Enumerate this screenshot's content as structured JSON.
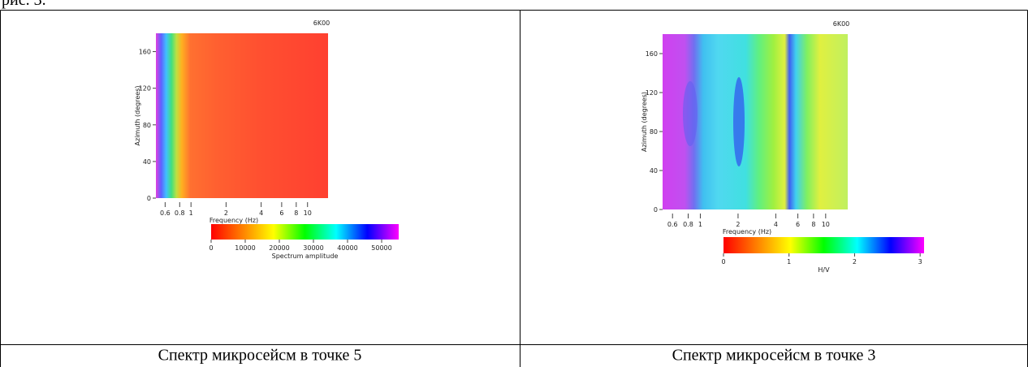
{
  "fragment": "рис. 3.",
  "chart_data": [
    {
      "type": "heatmap",
      "title": "6K00",
      "x_label": "Frequency (Hz)",
      "y_label": "Azimuth (degrees)",
      "xscale": "log",
      "xlim": [
        0.5,
        15
      ],
      "xticks": [
        0.6,
        0.8,
        1,
        2,
        4,
        6,
        8,
        10
      ],
      "ylim": [
        0,
        180
      ],
      "yticks": [
        0,
        40,
        80,
        120,
        160
      ],
      "colorbar": {
        "label": "Spectrum amplitude",
        "lim": [
          0,
          55000
        ],
        "ticks": [
          0,
          10000,
          20000,
          30000,
          40000,
          50000
        ],
        "colors": [
          "#ff0000",
          "#ff8000",
          "#ffff00",
          "#00ff00",
          "#00ffff",
          "#0000ff",
          "#ff00ff"
        ]
      }
    },
    {
      "type": "heatmap",
      "title": "6K00",
      "x_label": "Frequency (Hz)",
      "y_label": "Azimuth (degrees)",
      "xscale": "log",
      "xlim": [
        0.5,
        15
      ],
      "xticks": [
        0.6,
        0.8,
        1,
        2,
        4,
        6,
        8,
        10
      ],
      "ylim": [
        0,
        180
      ],
      "yticks": [
        0,
        40,
        80,
        120,
        160
      ],
      "colorbar": {
        "label": "H/V",
        "lim": [
          0,
          3.06
        ],
        "ticks": [
          0,
          1,
          2,
          3
        ],
        "colors": [
          "#ff0000",
          "#ff8000",
          "#ffff00",
          "#00ff00",
          "#00ffff",
          "#0000ff",
          "#ff00ff"
        ]
      }
    }
  ],
  "captions": [
    "Спектр микросейсм в точке 5",
    "Спектр микросейсм в точке 3"
  ]
}
